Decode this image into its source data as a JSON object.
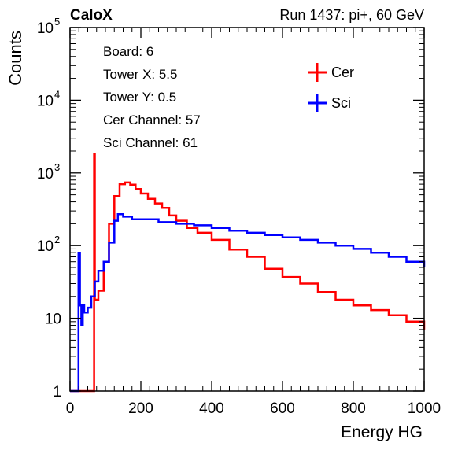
{
  "header": {
    "left_label": "CaloX",
    "right_label": "Run 1437: pi+, 60 GeV"
  },
  "info_box": {
    "lines": [
      "Board: 6",
      "Tower X: 5.5",
      "Tower Y: 0.5",
      "Cer Channel: 57",
      "Sci Channel: 61"
    ]
  },
  "chart_data": {
    "type": "line",
    "style": "histogram-step",
    "xlabel": "Energy HG",
    "ylabel": "Counts",
    "xlim": [
      0,
      1000
    ],
    "ylim": [
      1,
      100000
    ],
    "yscale": "log",
    "grid": false,
    "legend_position": "top-right",
    "x_ticks": [
      {
        "value": 0,
        "label": "0"
      },
      {
        "value": 200,
        "label": "200"
      },
      {
        "value": 400,
        "label": "400"
      },
      {
        "value": 600,
        "label": "600"
      },
      {
        "value": 800,
        "label": "800"
      },
      {
        "value": 1000,
        "label": "1000"
      }
    ],
    "y_ticks": [
      {
        "value": 1,
        "base": "1",
        "exp": ""
      },
      {
        "value": 10,
        "base": "10",
        "exp": ""
      },
      {
        "value": 100,
        "base": "10",
        "exp": "2"
      },
      {
        "value": 1000,
        "base": "10",
        "exp": "3"
      },
      {
        "value": 10000,
        "base": "10",
        "exp": "4"
      },
      {
        "value": 100000,
        "base": "10",
        "exp": "5"
      }
    ],
    "series": [
      {
        "name": "Cer",
        "color": "#ff0000",
        "x": [
          0,
          60,
          66,
          68,
          70,
          80,
          95,
          110,
          125,
          140,
          155,
          170,
          185,
          200,
          220,
          240,
          260,
          280,
          300,
          330,
          360,
          400,
          450,
          500,
          550,
          600,
          650,
          700,
          750,
          800,
          850,
          900,
          950,
          1000
        ],
        "y": [
          1,
          1,
          1,
          1800,
          18,
          24,
          60,
          200,
          480,
          700,
          740,
          690,
          600,
          520,
          440,
          380,
          330,
          260,
          220,
          175,
          150,
          120,
          88,
          70,
          48,
          37,
          30,
          23,
          18,
          15,
          13,
          11,
          9,
          7
        ]
      },
      {
        "name": "Sci",
        "color": "#0000ff",
        "x": [
          0,
          22,
          24,
          28,
          32,
          36,
          40,
          50,
          60,
          70,
          80,
          95,
          110,
          125,
          135,
          150,
          175,
          200,
          250,
          300,
          350,
          400,
          450,
          500,
          550,
          600,
          650,
          700,
          750,
          800,
          850,
          900,
          950,
          1000
        ],
        "y": [
          1,
          1,
          80,
          15,
          8,
          15,
          12,
          14,
          20,
          32,
          45,
          60,
          110,
          220,
          270,
          250,
          230,
          230,
          210,
          200,
          190,
          175,
          160,
          150,
          140,
          130,
          120,
          110,
          100,
          90,
          80,
          70,
          60,
          50
        ]
      }
    ]
  }
}
